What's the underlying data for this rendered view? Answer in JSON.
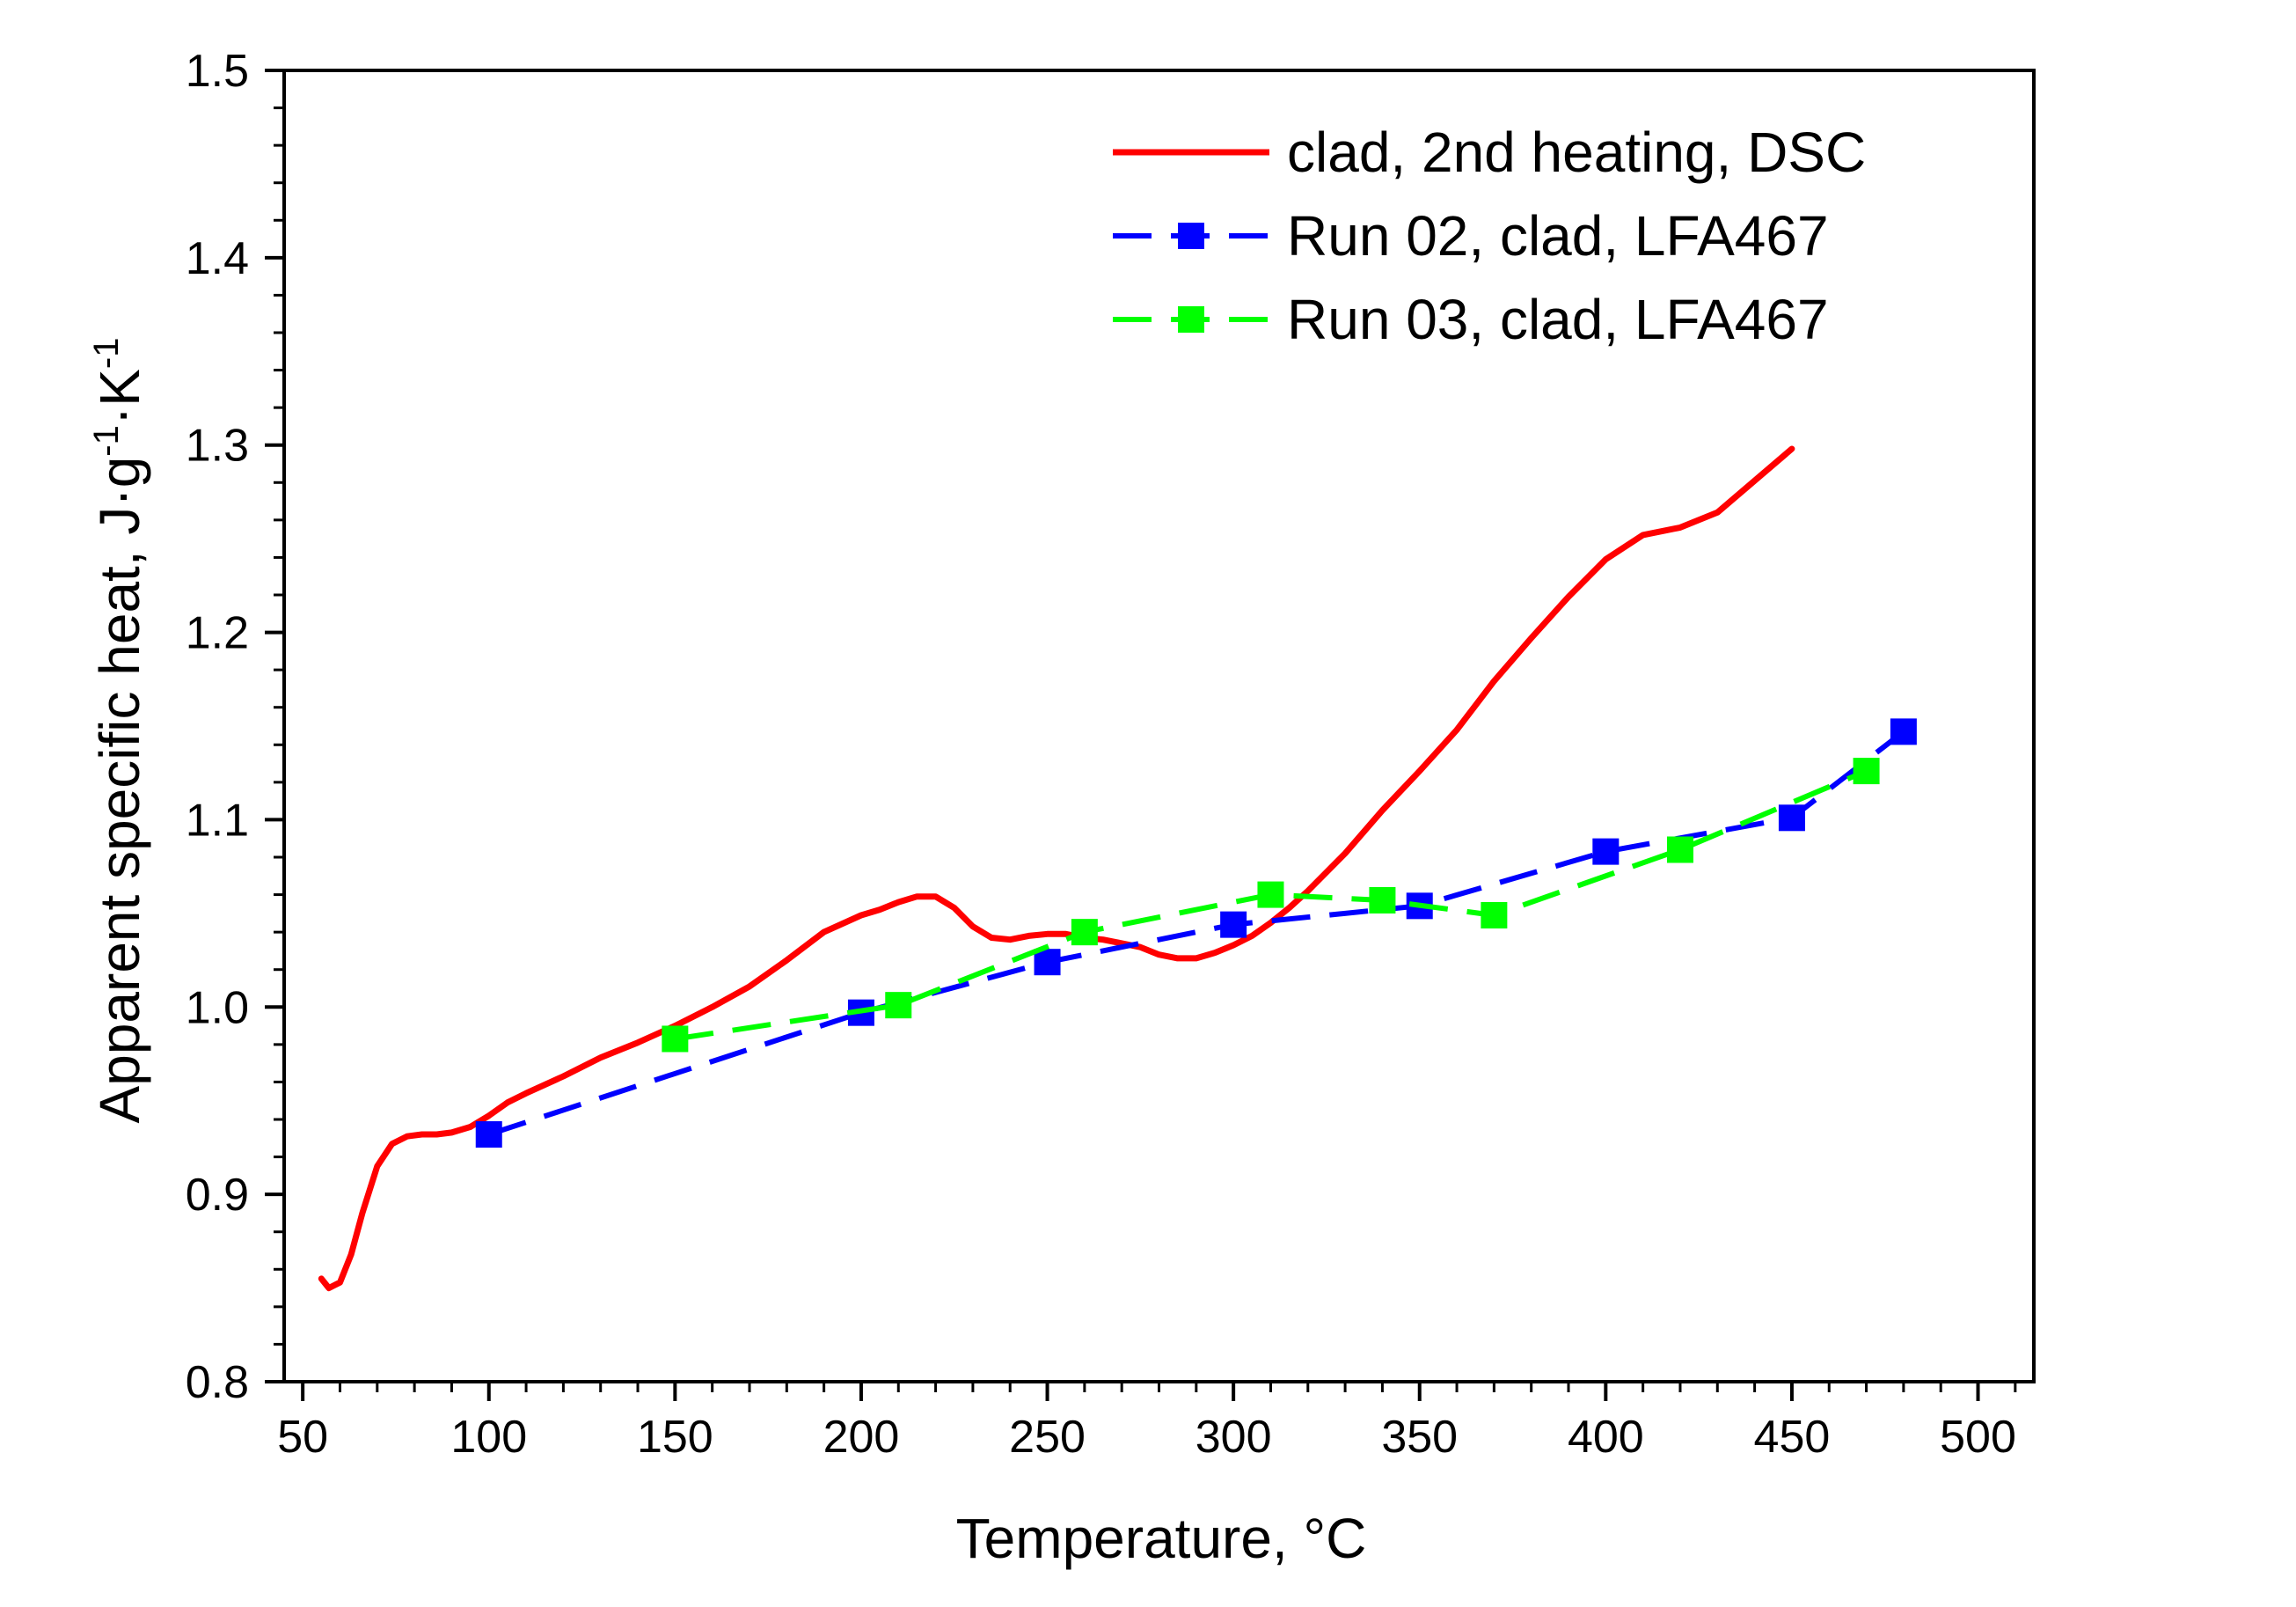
{
  "chart_data": {
    "type": "line",
    "title": "",
    "xlabel": "Temperature, °C",
    "ylabel": {
      "text": "Apparent specific heat, J·g",
      "sup1": "-1",
      "mid": "·K",
      "sup2": "-1"
    },
    "xlim": [
      45,
      515
    ],
    "ylim": [
      0.8,
      1.5
    ],
    "x_ticks": [
      50,
      100,
      150,
      200,
      250,
      300,
      350,
      400,
      450,
      500
    ],
    "x_tick_labels": [
      "50",
      "100",
      "150",
      "200",
      "250",
      "300",
      "350",
      "400",
      "450",
      "500"
    ],
    "y_ticks": [
      0.8,
      0.9,
      1.0,
      1.1,
      1.2,
      1.3,
      1.4,
      1.5
    ],
    "y_tick_labels": [
      "0.8",
      "0.9",
      "1.0",
      "1.1",
      "1.2",
      "1.3",
      "1.4",
      "1.5"
    ],
    "grid": false,
    "legend_position": "top-right",
    "series": [
      {
        "name": "clad, 2nd heating, DSC",
        "color": "#ff0000",
        "style": "solid",
        "marker": "none",
        "x": [
          55,
          57,
          60,
          63,
          66,
          70,
          74,
          78,
          82,
          86,
          90,
          95,
          100,
          105,
          110,
          120,
          130,
          140,
          150,
          160,
          170,
          180,
          190,
          200,
          205,
          210,
          215,
          220,
          225,
          230,
          235,
          240,
          245,
          250,
          255,
          260,
          265,
          270,
          275,
          280,
          285,
          290,
          295,
          300,
          305,
          310,
          315,
          320,
          330,
          340,
          350,
          360,
          370,
          380,
          390,
          400,
          410,
          420,
          430,
          440,
          450
        ],
        "y": [
          0.855,
          0.85,
          0.853,
          0.868,
          0.89,
          0.915,
          0.927,
          0.931,
          0.932,
          0.932,
          0.933,
          0.936,
          0.942,
          0.949,
          0.954,
          0.963,
          0.973,
          0.981,
          0.99,
          1.0,
          1.011,
          1.025,
          1.04,
          1.049,
          1.052,
          1.056,
          1.059,
          1.059,
          1.053,
          1.043,
          1.037,
          1.036,
          1.038,
          1.039,
          1.039,
          1.037,
          1.036,
          1.034,
          1.032,
          1.028,
          1.026,
          1.026,
          1.029,
          1.033,
          1.038,
          1.045,
          1.053,
          1.062,
          1.082,
          1.105,
          1.126,
          1.148,
          1.174,
          1.197,
          1.219,
          1.239,
          1.252,
          1.256,
          1.264,
          1.281,
          1.298
        ]
      },
      {
        "name": "Run 02, clad, LFA467",
        "color": "#0000ff",
        "style": "dashed",
        "marker": "square",
        "x": [
          100,
          200,
          250,
          300,
          350,
          400,
          450,
          480
        ],
        "y": [
          0.932,
          0.997,
          1.024,
          1.044,
          1.054,
          1.083,
          1.101,
          1.147
        ]
      },
      {
        "name": "Run 03, clad, LFA467",
        "color": "#00ff00",
        "style": "dashed",
        "marker": "square",
        "x": [
          150,
          210,
          260,
          310,
          340,
          370,
          420,
          470
        ],
        "y": [
          0.983,
          1.001,
          1.04,
          1.06,
          1.057,
          1.049,
          1.084,
          1.126
        ]
      }
    ]
  }
}
